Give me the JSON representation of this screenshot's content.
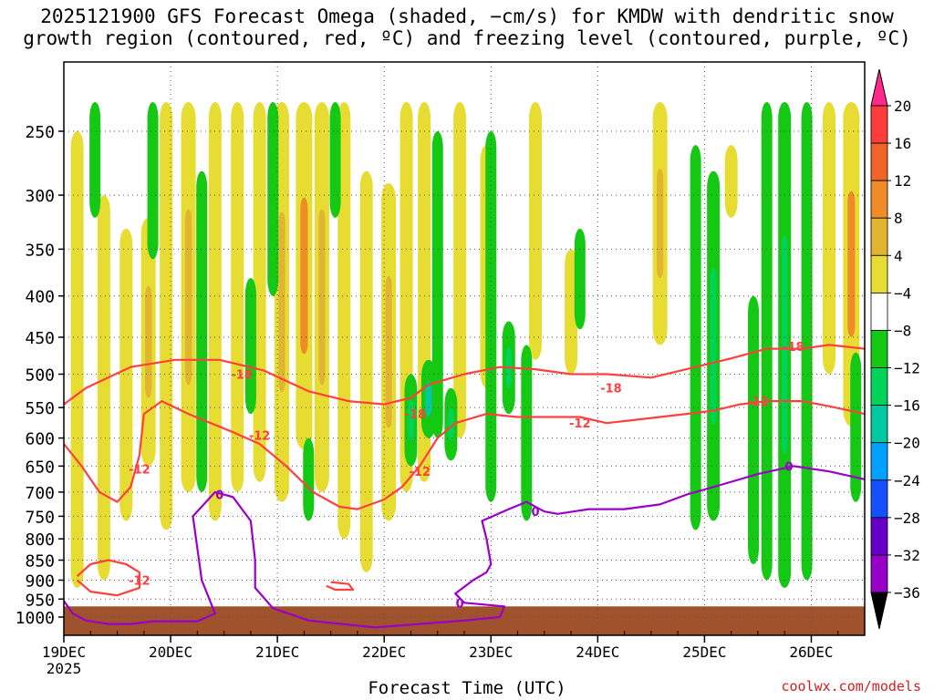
{
  "title": {
    "line1": "2025121900 GFS Forecast Omega (shaded, −cm/s) for KMDW with dendritic snow",
    "line2": "growth region (contoured, red, ºC) and freezing level (contoured, purple, ºC)"
  },
  "credit": "coolwx.com/models",
  "chart_data": {
    "type": "heatmap",
    "xlabel": "Forecast Time (UTC)",
    "ylabel": "",
    "x_ticks": [
      "19DEC",
      "20DEC",
      "21DEC",
      "22DEC",
      "23DEC",
      "24DEC",
      "25DEC",
      "26DEC"
    ],
    "x_year_label": "2025",
    "x_range_hours": [
      0,
      180
    ],
    "y_ticks": [
      250,
      300,
      350,
      400,
      450,
      500,
      550,
      600,
      650,
      700,
      750,
      800,
      850,
      900,
      950,
      1000
    ],
    "y_scale": "log",
    "y_range": [
      1030,
      200
    ],
    "grid": true,
    "colorbar": {
      "labels": [
        "20",
        "16",
        "12",
        "8",
        "4",
        "−4",
        "−8",
        "−12",
        "−16",
        "−20",
        "−24",
        "−28",
        "−32",
        "−36"
      ],
      "colors": [
        "#ff2a8c",
        "#ff3c3c",
        "#f0642a",
        "#f08c28",
        "#e1b432",
        "#e6dc32",
        "#ffffff",
        "#14c814",
        "#00d25a",
        "#00c8a0",
        "#00a0ff",
        "#1450ff",
        "#6400c8",
        "#9600c8",
        "#b4b4b4",
        "#000000"
      ]
    },
    "upward_bands": [
      {
        "hour": 3,
        "top": 250,
        "bottom": 920,
        "level": 1
      },
      {
        "hour": 9,
        "top": 300,
        "bottom": 900,
        "level": 1
      },
      {
        "hour": 14,
        "top": 330,
        "bottom": 760,
        "level": 1
      },
      {
        "hour": 19,
        "top": 320,
        "bottom": 650,
        "level": 2
      },
      {
        "hour": 23,
        "top": 230,
        "bottom": 780,
        "level": 1
      },
      {
        "hour": 28,
        "top": 230,
        "bottom": 700,
        "level": 2
      },
      {
        "hour": 34,
        "top": 230,
        "bottom": 760,
        "level": 1
      },
      {
        "hour": 39,
        "top": 230,
        "bottom": 700,
        "level": 1
      },
      {
        "hour": 44,
        "top": 230,
        "bottom": 680,
        "level": 1
      },
      {
        "hour": 49,
        "top": 230,
        "bottom": 720,
        "level": 2
      },
      {
        "hour": 54,
        "top": 230,
        "bottom": 620,
        "level": 3
      },
      {
        "hour": 58,
        "top": 230,
        "bottom": 700,
        "level": 2
      },
      {
        "hour": 63,
        "top": 230,
        "bottom": 800,
        "level": 1
      },
      {
        "hour": 68,
        "top": 280,
        "bottom": 880,
        "level": 1
      },
      {
        "hour": 73,
        "top": 290,
        "bottom": 760,
        "level": 2
      },
      {
        "hour": 77,
        "top": 230,
        "bottom": 700,
        "level": 1
      },
      {
        "hour": 81,
        "top": 230,
        "bottom": 680,
        "level": 1
      },
      {
        "hour": 89,
        "top": 230,
        "bottom": 600,
        "level": 1
      },
      {
        "hour": 95,
        "top": 260,
        "bottom": 520,
        "level": 1
      },
      {
        "hour": 106,
        "top": 230,
        "bottom": 480,
        "level": 1
      },
      {
        "hour": 114,
        "top": 350,
        "bottom": 500,
        "level": 1
      },
      {
        "hour": 134,
        "top": 230,
        "bottom": 460,
        "level": 2
      },
      {
        "hour": 150,
        "top": 260,
        "bottom": 320,
        "level": 1
      },
      {
        "hour": 172,
        "top": 230,
        "bottom": 500,
        "level": 1
      },
      {
        "hour": 177,
        "top": 230,
        "bottom": 580,
        "level": 3
      }
    ],
    "downward_bands": [
      {
        "hour": 7,
        "top": 230,
        "bottom": 320,
        "level": 1
      },
      {
        "hour": 20,
        "top": 230,
        "bottom": 360,
        "level": 1
      },
      {
        "hour": 31,
        "top": 280,
        "bottom": 700,
        "level": 1
      },
      {
        "hour": 42,
        "top": 380,
        "bottom": 560,
        "level": 1
      },
      {
        "hour": 47,
        "top": 230,
        "bottom": 400,
        "level": 1
      },
      {
        "hour": 55,
        "top": 600,
        "bottom": 760,
        "level": 1
      },
      {
        "hour": 61,
        "top": 230,
        "bottom": 320,
        "level": 1
      },
      {
        "hour": 78,
        "top": 500,
        "bottom": 650,
        "level": 2
      },
      {
        "hour": 82,
        "top": 480,
        "bottom": 600,
        "level": 3
      },
      {
        "hour": 84,
        "top": 250,
        "bottom": 600,
        "level": 1
      },
      {
        "hour": 87,
        "top": 520,
        "bottom": 640,
        "level": 2
      },
      {
        "hour": 96,
        "top": 250,
        "bottom": 720,
        "level": 1
      },
      {
        "hour": 100,
        "top": 430,
        "bottom": 560,
        "level": 2
      },
      {
        "hour": 104,
        "top": 460,
        "bottom": 760,
        "level": 1
      },
      {
        "hour": 116,
        "top": 330,
        "bottom": 440,
        "level": 1
      },
      {
        "hour": 142,
        "top": 260,
        "bottom": 780,
        "level": 1
      },
      {
        "hour": 146,
        "top": 280,
        "bottom": 760,
        "level": 2
      },
      {
        "hour": 155,
        "top": 400,
        "bottom": 860,
        "level": 1
      },
      {
        "hour": 158,
        "top": 230,
        "bottom": 900,
        "level": 1
      },
      {
        "hour": 162,
        "top": 230,
        "bottom": 920,
        "level": 2
      },
      {
        "hour": 167,
        "top": 230,
        "bottom": 900,
        "level": 1
      },
      {
        "hour": 178,
        "top": 470,
        "bottom": 720,
        "level": 1
      }
    ],
    "series": [
      {
        "name": "-18",
        "color": "#ff4040",
        "points": [
          [
            0,
            545
          ],
          [
            5,
            520
          ],
          [
            15,
            490
          ],
          [
            25,
            480
          ],
          [
            35,
            480
          ],
          [
            45,
            495
          ],
          [
            55,
            525
          ],
          [
            64,
            540
          ],
          [
            72,
            545
          ],
          [
            78,
            535
          ],
          [
            82,
            515
          ],
          [
            90,
            500
          ],
          [
            98,
            490
          ],
          [
            106,
            493
          ],
          [
            114,
            500
          ],
          [
            122,
            500
          ],
          [
            132,
            505
          ],
          [
            142,
            490
          ],
          [
            150,
            478
          ],
          [
            158,
            465
          ],
          [
            166,
            465
          ],
          [
            172,
            460
          ],
          [
            180,
            465
          ]
        ],
        "labels": [
          [
            40,
            500
          ],
          [
            79,
            560
          ],
          [
            123,
            520
          ],
          [
            164,
            462
          ]
        ]
      },
      {
        "name": "-12",
        "color": "#ff4040",
        "points": [
          [
            0,
            610
          ],
          [
            4,
            650
          ],
          [
            8,
            700
          ],
          [
            12,
            720
          ],
          [
            15,
            690
          ],
          [
            17,
            630
          ],
          [
            18,
            560
          ],
          [
            22,
            540
          ],
          [
            28,
            560
          ],
          [
            33,
            575
          ],
          [
            38,
            590
          ],
          [
            44,
            610
          ],
          [
            50,
            650
          ],
          [
            56,
            700
          ],
          [
            62,
            730
          ],
          [
            66,
            735
          ],
          [
            72,
            715
          ],
          [
            76,
            690
          ],
          [
            80,
            650
          ],
          [
            84,
            600
          ],
          [
            88,
            575
          ],
          [
            95,
            560
          ],
          [
            102,
            565
          ],
          [
            110,
            565
          ],
          [
            116,
            565
          ],
          [
            122,
            575
          ],
          [
            128,
            570
          ],
          [
            134,
            565
          ],
          [
            140,
            560
          ],
          [
            146,
            555
          ],
          [
            152,
            545
          ],
          [
            158,
            540
          ],
          [
            166,
            540
          ],
          [
            172,
            548
          ],
          [
            180,
            560
          ]
        ],
        "labels": [
          [
            17,
            655
          ],
          [
            44,
            595
          ],
          [
            80,
            660
          ],
          [
            116,
            575
          ],
          [
            156,
            540
          ]
        ]
      },
      {
        "name": "-12 (low)",
        "color": "#ff4040",
        "points": [
          [
            3,
            890
          ],
          [
            6,
            860
          ],
          [
            10,
            850
          ],
          [
            14,
            860
          ],
          [
            17,
            880
          ],
          [
            17,
            920
          ],
          [
            12,
            940
          ],
          [
            6,
            930
          ],
          [
            3,
            900
          ]
        ],
        "labels": [
          [
            17,
            900
          ]
        ]
      },
      {
        "name": "-12 (small)",
        "color": "#ff4040",
        "points": [
          [
            60,
            905
          ],
          [
            64,
            910
          ],
          [
            65,
            925
          ],
          [
            61,
            925
          ],
          [
            59,
            915
          ]
        ],
        "labels": []
      },
      {
        "name": "0",
        "color": "#9a00c8",
        "points": [
          [
            0,
            955
          ],
          [
            2,
            990
          ],
          [
            5,
            1010
          ],
          [
            10,
            1020
          ],
          [
            15,
            1020
          ],
          [
            20,
            1012
          ],
          [
            30,
            1012
          ],
          [
            34,
            990
          ],
          [
            31,
            900
          ],
          [
            29,
            750
          ],
          [
            34,
            700
          ],
          [
            38,
            710
          ],
          [
            42,
            760
          ],
          [
            43,
            850
          ],
          [
            43,
            920
          ],
          [
            47,
            975
          ],
          [
            55,
            1010
          ],
          [
            70,
            1030
          ]
        ],
        "labels": [
          [
            35,
            705
          ]
        ]
      },
      {
        "name": "0 (right)",
        "color": "#9a00c8",
        "points": [
          [
            70,
            1030
          ],
          [
            90,
            1010
          ],
          [
            98,
            1000
          ],
          [
            99,
            970
          ],
          [
            90,
            960
          ],
          [
            88,
            935
          ],
          [
            92,
            900
          ],
          [
            95,
            880
          ],
          [
            96,
            860
          ],
          [
            95,
            800
          ],
          [
            94,
            760
          ],
          [
            100,
            735
          ],
          [
            104,
            720
          ],
          [
            108,
            740
          ],
          [
            111,
            745
          ],
          [
            118,
            735
          ],
          [
            126,
            735
          ],
          [
            134,
            725
          ],
          [
            140,
            705
          ],
          [
            148,
            685
          ],
          [
            156,
            665
          ],
          [
            164,
            650
          ],
          [
            172,
            660
          ],
          [
            180,
            675
          ]
        ],
        "labels": [
          [
            89,
            960
          ],
          [
            106,
            740
          ],
          [
            163,
            650
          ]
        ]
      }
    ]
  }
}
